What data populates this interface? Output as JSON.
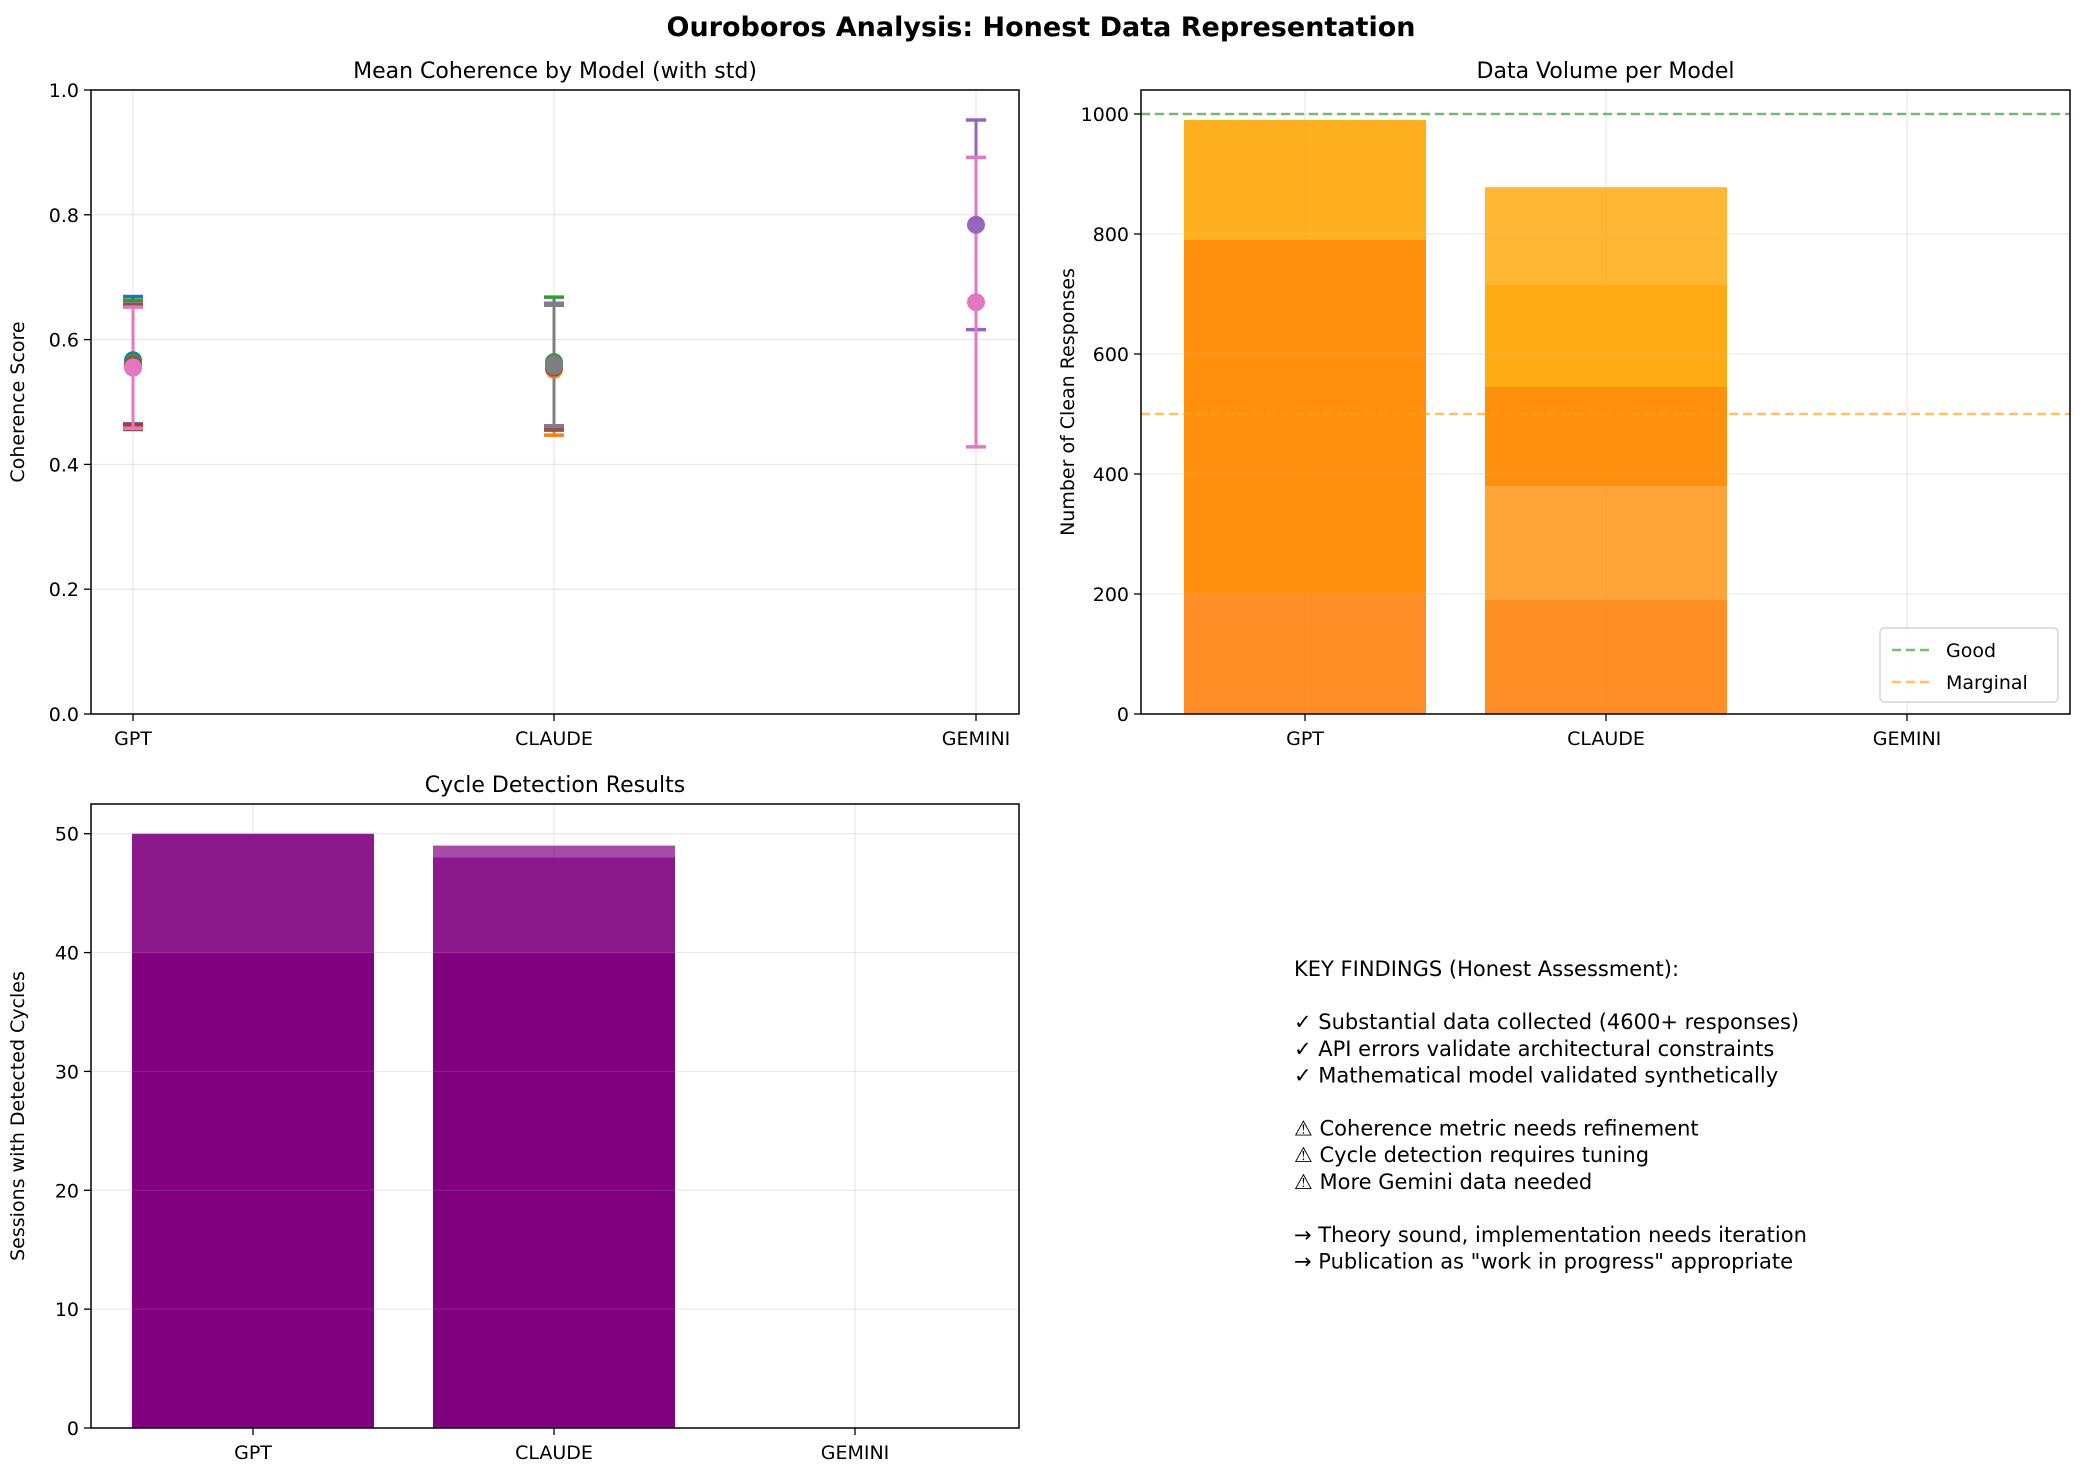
{
  "figure": {
    "title": "Ouroboros Analysis: Honest Data Representation"
  },
  "colors": {
    "blue": "#1f77b4",
    "orange": "#ff7f0e",
    "green": "#2ca02c",
    "red": "#d62728",
    "purple": "#9467bd",
    "brown": "#8c564b",
    "pink": "#e377c2",
    "gray": "#7f7f7f",
    "bar_orange": "#ffa500",
    "bar_purple": "#800080",
    "good_line": "#2ca02c",
    "marginal_line": "#ffa500"
  },
  "chart_data": [
    {
      "type": "scatter",
      "title": "Mean Coherence by Model (with std)",
      "xlabel": "",
      "ylabel": "Coherence Score",
      "categories": [
        "GPT",
        "CLAUDE",
        "GEMINI"
      ],
      "ylim": [
        0,
        1.0
      ],
      "yticks": [
        0.0,
        0.2,
        0.4,
        0.6,
        0.8,
        1.0
      ],
      "ytick_labels": [
        "0.0",
        "0.2",
        "0.4",
        "0.6",
        "0.8",
        "1.0"
      ],
      "grid": true,
      "errorbar_series": [
        {
          "color": "blue",
          "points": [
            {
              "x": "GPT",
              "mean": 0.567,
              "std": 0.102
            },
            {
              "x": "CLAUDE",
              "mean": 0.556,
              "std": 0.1
            }
          ]
        },
        {
          "color": "orange",
          "points": [
            {
              "x": "GPT",
              "mean": 0.56,
              "std": 0.1
            },
            {
              "x": "CLAUDE",
              "mean": 0.552,
              "std": 0.105
            }
          ]
        },
        {
          "color": "green",
          "points": [
            {
              "x": "GPT",
              "mean": 0.563,
              "std": 0.1
            },
            {
              "x": "CLAUDE",
              "mean": 0.564,
              "std": 0.104
            }
          ]
        },
        {
          "color": "red",
          "points": [
            {
              "x": "GPT",
              "mean": 0.559,
              "std": 0.095
            },
            {
              "x": "CLAUDE",
              "mean": 0.558,
              "std": 0.1
            }
          ]
        },
        {
          "color": "purple",
          "points": [
            {
              "x": "GPT",
              "mean": 0.557,
              "std": 0.1
            },
            {
              "x": "CLAUDE",
              "mean": 0.56,
              "std": 0.098
            },
            {
              "x": "GEMINI",
              "mean": 0.784,
              "std": 0.168
            }
          ]
        },
        {
          "color": "brown",
          "points": [
            {
              "x": "GPT",
              "mean": 0.556,
              "std": 0.1
            },
            {
              "x": "CLAUDE",
              "mean": 0.555,
              "std": 0.1
            }
          ]
        },
        {
          "color": "pink",
          "points": [
            {
              "x": "GPT",
              "mean": 0.555,
              "std": 0.097
            },
            {
              "x": "GEMINI",
              "mean": 0.66,
              "std": 0.232
            }
          ]
        },
        {
          "color": "gray",
          "points": [
            {
              "x": "CLAUDE",
              "mean": 0.558,
              "std": 0.097
            }
          ]
        }
      ]
    },
    {
      "type": "bar",
      "title": "Data Volume per Model",
      "xlabel": "",
      "ylabel": "Number of Clean Responses",
      "categories": [
        "GPT",
        "CLAUDE",
        "GEMINI"
      ],
      "ylim": [
        0,
        1040
      ],
      "yticks": [
        0,
        200,
        400,
        600,
        800,
        1000
      ],
      "ytick_labels": [
        "0",
        "200",
        "400",
        "600",
        "800",
        "1000"
      ],
      "grid": true,
      "stacked_segments": [
        {
          "category": "GPT",
          "bottom": 0,
          "top": 200,
          "opacity": 0.85
        },
        {
          "category": "GPT",
          "bottom": 200,
          "top": 790,
          "opacity": 0.95
        },
        {
          "category": "GPT",
          "bottom": 790,
          "top": 990,
          "opacity": 0.88
        },
        {
          "category": "CLAUDE",
          "bottom": 0,
          "top": 190,
          "opacity": 0.85
        },
        {
          "category": "CLAUDE",
          "bottom": 190,
          "top": 380,
          "opacity": 0.78
        },
        {
          "category": "CLAUDE",
          "bottom": 380,
          "top": 545,
          "opacity": 0.95
        },
        {
          "category": "CLAUDE",
          "bottom": 545,
          "top": 715,
          "opacity": 0.92
        },
        {
          "category": "CLAUDE",
          "bottom": 715,
          "top": 878,
          "opacity": 0.8
        }
      ],
      "reference_lines": [
        {
          "name": "Good",
          "y": 1000,
          "color": "good_line"
        },
        {
          "name": "Marginal",
          "y": 500,
          "color": "marginal_line"
        }
      ],
      "legend_placement": "lower-right"
    },
    {
      "type": "bar",
      "title": "Cycle Detection Results",
      "xlabel": "",
      "ylabel": "Sessions with Detected Cycles",
      "categories": [
        "GPT",
        "CLAUDE",
        "GEMINI"
      ],
      "ylim": [
        0,
        52.5
      ],
      "yticks": [
        0,
        10,
        20,
        30,
        40,
        50
      ],
      "ytick_labels": [
        "0",
        "10",
        "20",
        "30",
        "40",
        "50"
      ],
      "grid": true,
      "stacked_segments": [
        {
          "category": "GPT",
          "bottom": 0,
          "top": 40,
          "opacity": 1.0
        },
        {
          "category": "GPT",
          "bottom": 40,
          "top": 50,
          "opacity": 0.9
        },
        {
          "category": "CLAUDE",
          "bottom": 0,
          "top": 40,
          "opacity": 1.0
        },
        {
          "category": "CLAUDE",
          "bottom": 40,
          "top": 48,
          "opacity": 0.9
        },
        {
          "category": "CLAUDE",
          "bottom": 48,
          "top": 49,
          "opacity": 0.7
        }
      ]
    }
  ],
  "findings": {
    "lines": [
      "KEY FINDINGS (Honest Assessment):",
      "",
      "✓ Substantial data collected (4600+ responses)",
      "✓ API errors validate architectural constraints",
      "✓ Mathematical model validated synthetically",
      "",
      "⚠ Coherence metric needs refinement",
      "⚠ Cycle detection requires tuning",
      "⚠ More Gemini data needed",
      "",
      "→ Theory sound, implementation needs iteration",
      "→ Publication as \"work in progress\" appropriate"
    ]
  }
}
